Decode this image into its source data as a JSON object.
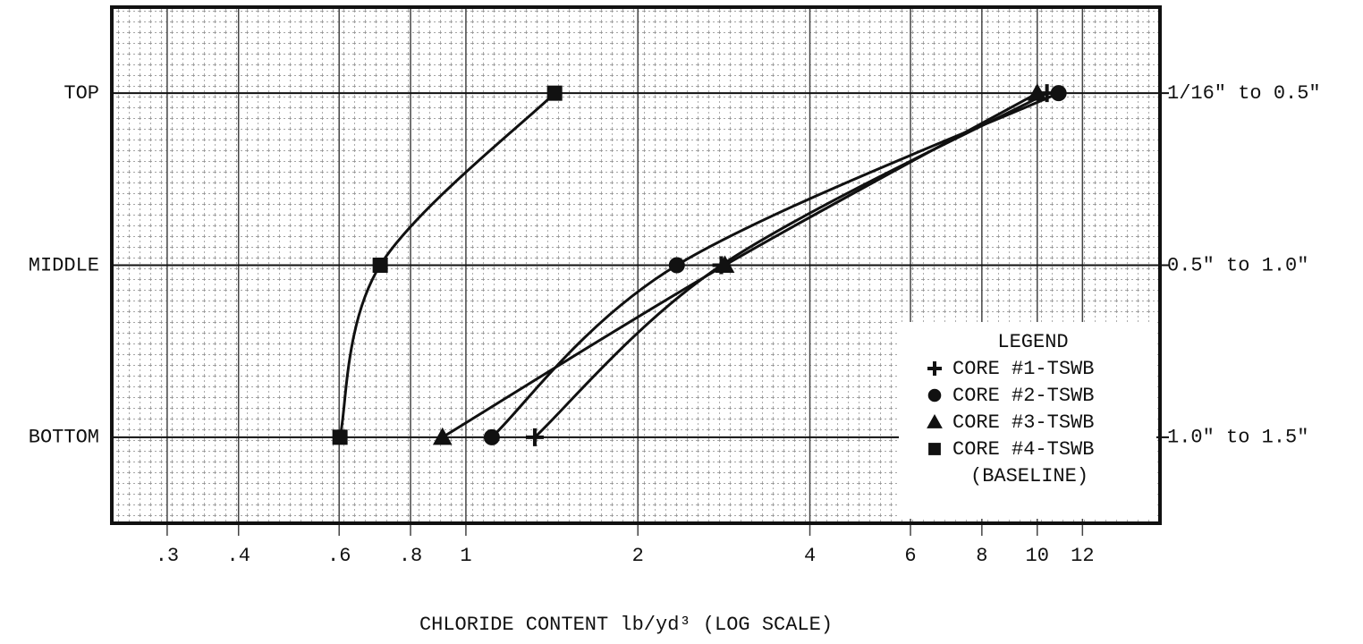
{
  "chart_data": {
    "type": "log-dot-line",
    "xlabel": "CHLORIDE CONTENT lb/yd³ (LOG SCALE)",
    "x_log": true,
    "xlim": [
      0.24,
      16.4
    ],
    "xticks": [
      {
        "value": 0.3,
        "label": ".3"
      },
      {
        "value": 0.4,
        "label": ".4"
      },
      {
        "value": 0.6,
        "label": ".6"
      },
      {
        "value": 0.8,
        "label": ".8"
      },
      1,
      2,
      4,
      6,
      8,
      10,
      12
    ],
    "grid": true,
    "y_categories": [
      "TOP",
      "MIDDLE",
      "BOTTOM"
    ],
    "y_right_labels": [
      "1/16\" to 0.5\"",
      "0.5\" to 1.0\"",
      "1.0\" to 1.5\""
    ],
    "legend_title": "LEGEND",
    "legend_note": "(BASELINE)",
    "legend_position": "lower right",
    "series": [
      {
        "name": "CORE #1-TSWB",
        "marker": "plus",
        "color": "#111111",
        "values": [
          10.4,
          2.8,
          1.32
        ]
      },
      {
        "name": "CORE #2-TSWB",
        "marker": "circle",
        "color": "#111111",
        "values": [
          10.9,
          2.34,
          1.11
        ]
      },
      {
        "name": "CORE #3-TSWB",
        "marker": "triangle",
        "color": "#111111",
        "values": [
          10.0,
          2.84,
          0.91
        ]
      },
      {
        "name": "CORE #4-TSWB",
        "marker": "square",
        "color": "#111111",
        "values": [
          1.43,
          0.708,
          0.602
        ]
      }
    ]
  }
}
